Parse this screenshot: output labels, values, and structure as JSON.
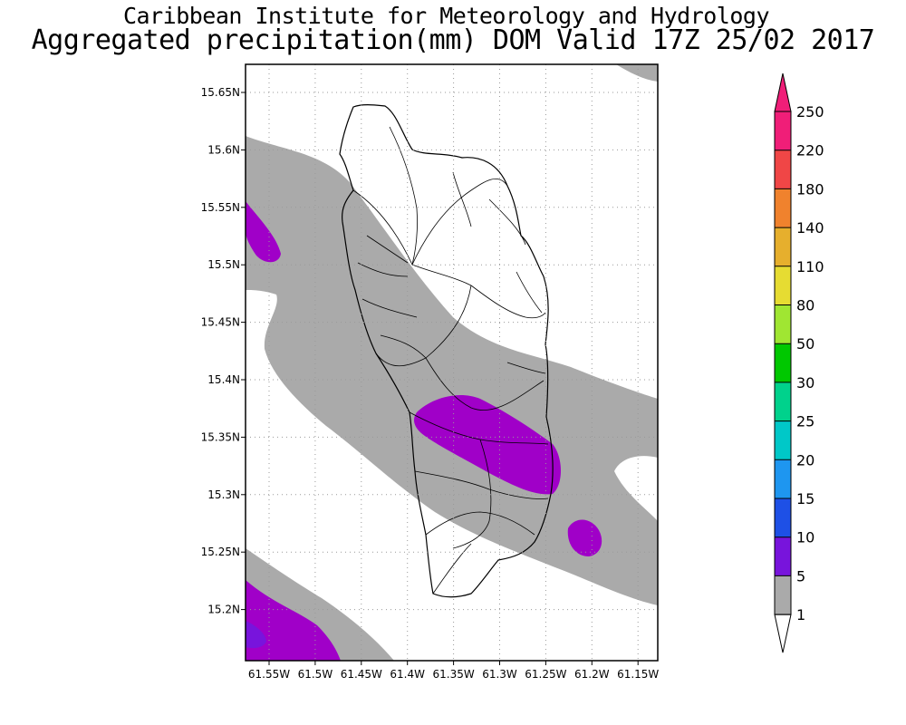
{
  "header": {
    "title_line1": "Caribbean Institute for Meteorology and Hydrology",
    "title_line2": "Aggregated precipitation(mm) DOM Valid 17Z 25/02 2017"
  },
  "map": {
    "lat_ticks": [
      {
        "value": 15.65,
        "label": "15.65N"
      },
      {
        "value": 15.6,
        "label": "15.6N"
      },
      {
        "value": 15.55,
        "label": "15.55N"
      },
      {
        "value": 15.5,
        "label": "15.5N"
      },
      {
        "value": 15.45,
        "label": "15.45N"
      },
      {
        "value": 15.4,
        "label": "15.4N"
      },
      {
        "value": 15.35,
        "label": "15.35N"
      },
      {
        "value": 15.3,
        "label": "15.3N"
      },
      {
        "value": 15.25,
        "label": "15.25N"
      },
      {
        "value": 15.2,
        "label": "15.2N"
      }
    ],
    "lon_ticks": [
      {
        "value": -61.55,
        "label": "61.55W"
      },
      {
        "value": -61.5,
        "label": "61.5W"
      },
      {
        "value": -61.45,
        "label": "61.45W"
      },
      {
        "value": -61.4,
        "label": "61.4W"
      },
      {
        "value": -61.35,
        "label": "61.35W"
      },
      {
        "value": -61.3,
        "label": "61.3W"
      },
      {
        "value": -61.25,
        "label": "61.25W"
      },
      {
        "value": -61.2,
        "label": "61.2W"
      },
      {
        "value": -61.15,
        "label": "61.15W"
      }
    ],
    "grid": "dotted"
  },
  "colorbar": {
    "levels": [
      {
        "label": "250",
        "color": "#f01e78"
      },
      {
        "label": "220",
        "color": "#f04646"
      },
      {
        "label": "180",
        "color": "#f0822d"
      },
      {
        "label": "140",
        "color": "#e6af2d"
      },
      {
        "label": "110",
        "color": "#e6dc32"
      },
      {
        "label": "80",
        "color": "#a0e632"
      },
      {
        "label": "50",
        "color": "#00c800"
      },
      {
        "label": "30",
        "color": "#00d28c"
      },
      {
        "label": "25",
        "color": "#00c8c8"
      },
      {
        "label": "20",
        "color": "#1e96f0"
      },
      {
        "label": "15",
        "color": "#1e50e6"
      },
      {
        "label": "10",
        "color": "#7814dc"
      },
      {
        "label": "5",
        "color": "#a000c8"
      },
      {
        "label": "1",
        "color": "#aaaaaa"
      }
    ],
    "below_min_color": "#ffffff"
  },
  "colors": {
    "band_1_5mm": "#aaaaaa",
    "band_5_10mm": "#a000c8",
    "band_10_15mm": "#7814dc"
  }
}
